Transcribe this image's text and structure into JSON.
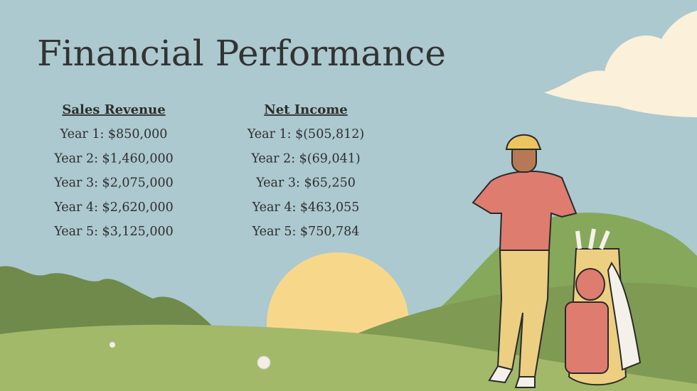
{
  "header": {
    "title": "Financial Performance"
  },
  "columns": [
    {
      "heading": "Sales Revenue",
      "items": [
        "Year 1: $850,000",
        "Year 2: $1,460,000",
        "Year 3: $2,075,000",
        "Year 4: $2,620,000",
        "Year 5: $3,125,000"
      ]
    },
    {
      "heading": "Net Income",
      "items": [
        "Year 1: $(505,812)",
        "Year 2: $(69,041)",
        "Year 3: $65,250",
        "Year 4: $463,055",
        "Year 5: $750,784"
      ]
    }
  ]
}
